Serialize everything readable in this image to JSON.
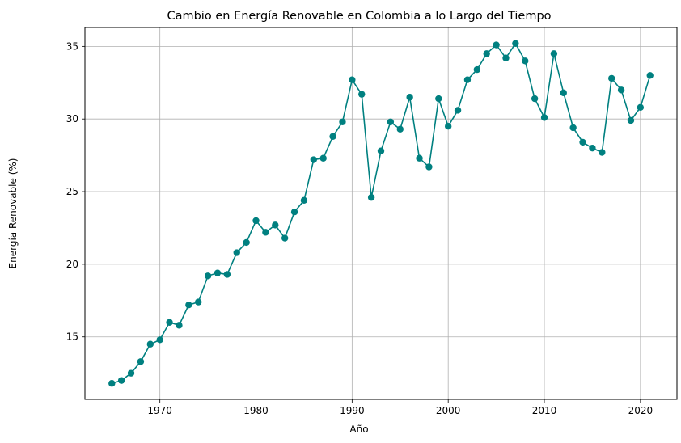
{
  "chart_data": {
    "type": "line",
    "title": "Cambio en Energía Renovable en Colombia a lo Largo del Tiempo",
    "xlabel": "Año",
    "ylabel": "Energía Renovable (%)",
    "xlim": [
      1962.2,
      2023.8
    ],
    "ylim": [
      10.7,
      36.3
    ],
    "xticks": [
      1970,
      1980,
      1990,
      2000,
      2010,
      2020
    ],
    "yticks": [
      15,
      20,
      25,
      30,
      35
    ],
    "grid": true,
    "series_color": "#008080",
    "marker": "circle",
    "series": [
      {
        "x": [
          1965,
          1966,
          1967,
          1968,
          1969,
          1970,
          1971,
          1972,
          1973,
          1974,
          1975,
          1976,
          1977,
          1978,
          1979,
          1980,
          1981,
          1982,
          1983,
          1984,
          1985,
          1986,
          1987,
          1988,
          1989,
          1990,
          1991,
          1992,
          1993,
          1994,
          1995,
          1996,
          1997,
          1998,
          1999,
          2000,
          2001,
          2002,
          2003,
          2004,
          2005,
          2006,
          2007,
          2008,
          2009,
          2010,
          2011,
          2012,
          2013,
          2014,
          2015,
          2016,
          2017,
          2018,
          2019,
          2020,
          2021
        ],
        "values": [
          11.8,
          12.0,
          12.5,
          13.3,
          14.5,
          14.8,
          16.0,
          15.8,
          17.2,
          17.4,
          19.2,
          19.4,
          19.3,
          20.8,
          21.5,
          23.0,
          22.2,
          22.7,
          21.8,
          23.6,
          24.4,
          27.2,
          27.3,
          28.8,
          29.8,
          32.7,
          31.7,
          24.6,
          27.8,
          29.8,
          29.3,
          31.5,
          27.3,
          26.7,
          31.4,
          29.5,
          30.6,
          32.7,
          33.4,
          34.5,
          35.1,
          34.2,
          35.2,
          34.0,
          31.4,
          30.1,
          34.5,
          31.8,
          29.4,
          28.4,
          28.0,
          27.7,
          32.8,
          32.0,
          29.9,
          30.8,
          33.0
        ]
      }
    ]
  }
}
